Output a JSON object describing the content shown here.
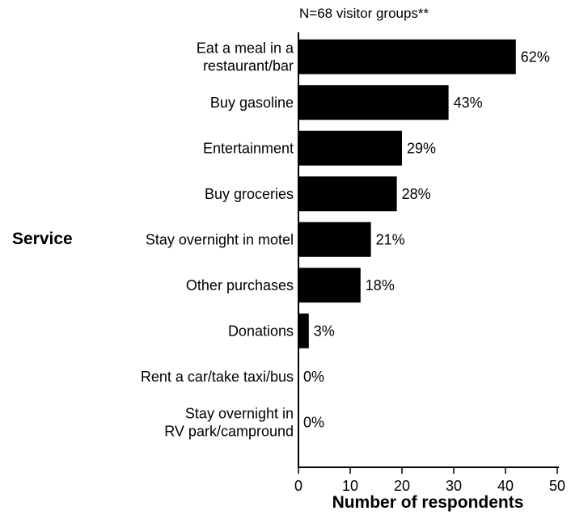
{
  "chart_data": {
    "type": "bar",
    "orientation": "horizontal",
    "note": "N=68 visitor groups**",
    "xlabel": "Number of respondents",
    "ylabel": "Service",
    "xlim": [
      0,
      50
    ],
    "xticks": [
      0,
      10,
      20,
      30,
      40,
      50
    ],
    "grid": false,
    "bar_color": "#000000",
    "categories": [
      [
        "Eat a meal in a",
        "restaurant/bar"
      ],
      [
        "Buy gasoline"
      ],
      [
        "Entertainment"
      ],
      [
        "Buy groceries"
      ],
      [
        "Stay overnight in motel"
      ],
      [
        "Other purchases"
      ],
      [
        "Donations"
      ],
      [
        "Rent a car/take taxi/bus"
      ],
      [
        "Stay overnight in",
        "RV park/campround"
      ]
    ],
    "values": [
      42,
      29,
      20,
      19,
      14,
      12,
      2,
      0,
      0
    ],
    "data_labels": [
      "62%",
      "43%",
      "29%",
      "28%",
      "21%",
      "18%",
      "3%",
      "0%",
      "0%"
    ]
  }
}
